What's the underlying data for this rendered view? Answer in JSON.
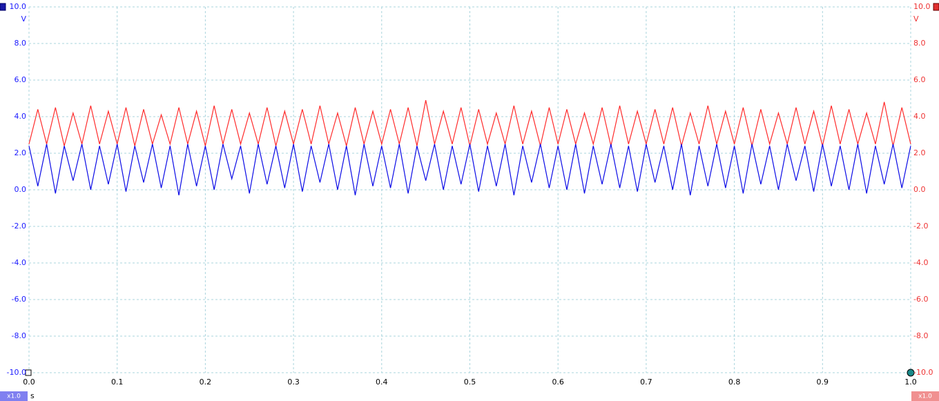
{
  "chart_data": {
    "type": "line",
    "y_label": "V",
    "y2_label": "V",
    "x_label": "s",
    "left_badge": "x1.0",
    "right_badge": "x1.0",
    "grid": true,
    "xlim": [
      0,
      1
    ],
    "ylim": [
      -10,
      10
    ],
    "y2lim": [
      -10,
      10
    ],
    "xticks": [
      {
        "value": 0,
        "label": "0.0"
      },
      0.1,
      0.2,
      0.3,
      0.4,
      0.5,
      0.6,
      0.7,
      0.8,
      0.9,
      {
        "value": 1,
        "label": "1.0"
      }
    ],
    "yticks": [
      {
        "value": -10,
        "label": "-10.0"
      },
      {
        "value": -8,
        "label": "-8.0"
      },
      {
        "value": -6,
        "label": "-6.0"
      },
      {
        "value": -4,
        "label": "-4.0"
      },
      {
        "value": -2,
        "label": "-2.0"
      },
      {
        "value": 0,
        "label": "0.0"
      },
      {
        "value": 2,
        "label": "2.0"
      },
      {
        "value": 4,
        "label": "4.0"
      },
      {
        "value": 6,
        "label": "6.0"
      },
      {
        "value": 8,
        "label": "8.0"
      },
      {
        "value": 10,
        "label": "10.0"
      }
    ],
    "y2ticks": [
      {
        "value": -10,
        "label": "-10.0"
      },
      {
        "value": -8,
        "label": "-8.0"
      },
      {
        "value": -6,
        "label": "-6.0"
      },
      {
        "value": -4,
        "label": "-4.0"
      },
      {
        "value": -2,
        "label": "-2.0"
      },
      {
        "value": 0,
        "label": "0.0"
      },
      {
        "value": 2,
        "label": "2.0"
      },
      {
        "value": 4,
        "label": "4.0"
      },
      {
        "value": 6,
        "label": "6.0"
      },
      {
        "value": 8,
        "label": "8.0"
      },
      {
        "value": 10,
        "label": "10.0"
      }
    ],
    "x": [
      0,
      0.01,
      0.02,
      0.03,
      0.04,
      0.05,
      0.06,
      0.07,
      0.08,
      0.09,
      0.1,
      0.11,
      0.12,
      0.13,
      0.14,
      0.15,
      0.16,
      0.17,
      0.18,
      0.19,
      0.2,
      0.21,
      0.22,
      0.23,
      0.24,
      0.25,
      0.26,
      0.27,
      0.28,
      0.29,
      0.3,
      0.31,
      0.32,
      0.33,
      0.34,
      0.35,
      0.36,
      0.37,
      0.38,
      0.39,
      0.4,
      0.41,
      0.42,
      0.43,
      0.44,
      0.45,
      0.46,
      0.47,
      0.48,
      0.49,
      0.5,
      0.51,
      0.52,
      0.53,
      0.54,
      0.55,
      0.56,
      0.57,
      0.58,
      0.59,
      0.6,
      0.61,
      0.62,
      0.63,
      0.64,
      0.65,
      0.66,
      0.67,
      0.68,
      0.69,
      0.7,
      0.71,
      0.72,
      0.73,
      0.74,
      0.75,
      0.76,
      0.77,
      0.78,
      0.79,
      0.8,
      0.81,
      0.82,
      0.83,
      0.84,
      0.85,
      0.86,
      0.87,
      0.88,
      0.89,
      0.9,
      0.91,
      0.92,
      0.93,
      0.94,
      0.95,
      0.96,
      0.97,
      0.98,
      0.99,
      1
    ],
    "series": [
      {
        "color": "#ff2a2a",
        "axis": "y2",
        "values": [
          2.5,
          4.4,
          2.5,
          4.5,
          2.4,
          4.2,
          2.5,
          4.6,
          2.5,
          4.3,
          2.5,
          4.5,
          2.4,
          4.4,
          2.5,
          4.1,
          2.5,
          4.5,
          2.5,
          4.3,
          2.4,
          4.6,
          2.5,
          4.4,
          2.5,
          4.2,
          2.5,
          4.5,
          2.4,
          4.3,
          2.5,
          4.4,
          2.5,
          4.6,
          2.5,
          4.2,
          2.4,
          4.5,
          2.5,
          4.3,
          2.5,
          4.4,
          2.5,
          4.5,
          2.4,
          4.9,
          2.5,
          4.3,
          2.5,
          4.5,
          2.4,
          4.4,
          2.5,
          4.2,
          2.5,
          4.6,
          2.5,
          4.3,
          2.4,
          4.5,
          2.5,
          4.4,
          2.5,
          4.2,
          2.5,
          4.5,
          2.4,
          4.6,
          2.5,
          4.3,
          2.5,
          4.4,
          2.5,
          4.5,
          2.4,
          4.2,
          2.5,
          4.6,
          2.5,
          4.3,
          2.5,
          4.5,
          2.4,
          4.4,
          2.5,
          4.2,
          2.5,
          4.5,
          2.5,
          4.3,
          2.4,
          4.6,
          2.5,
          4.4,
          2.5,
          4.2,
          2.5,
          4.8,
          2.4,
          4.5,
          2.5
        ]
      },
      {
        "color": "#0a0ae6",
        "values": [
          2.4,
          0.2,
          2.5,
          -0.2,
          2.4,
          0.5,
          2.5,
          0.0,
          2.4,
          0.3,
          2.5,
          -0.1,
          2.4,
          0.4,
          2.5,
          0.1,
          2.4,
          -0.3,
          2.5,
          0.2,
          2.4,
          0.0,
          2.5,
          0.6,
          2.4,
          -0.2,
          2.5,
          0.3,
          2.4,
          0.1,
          2.5,
          -0.1,
          2.4,
          0.4,
          2.5,
          0.0,
          2.4,
          -0.3,
          2.5,
          0.2,
          2.4,
          0.1,
          2.5,
          -0.2,
          2.4,
          0.5,
          2.5,
          0.0,
          2.4,
          0.3,
          2.5,
          -0.1,
          2.4,
          0.2,
          2.5,
          -0.3,
          2.4,
          0.4,
          2.5,
          0.1,
          2.4,
          0.0,
          2.5,
          -0.2,
          2.4,
          0.3,
          2.5,
          0.1,
          2.4,
          -0.1,
          2.5,
          0.4,
          2.4,
          0.0,
          2.5,
          -0.3,
          2.4,
          0.2,
          2.5,
          0.1,
          2.4,
          -0.2,
          2.5,
          0.3,
          2.4,
          0.0,
          2.5,
          0.5,
          2.4,
          -0.1,
          2.5,
          0.2,
          2.4,
          0.0,
          2.5,
          -0.2,
          2.4,
          0.3,
          2.5,
          0.1,
          2.4
        ]
      }
    ]
  }
}
